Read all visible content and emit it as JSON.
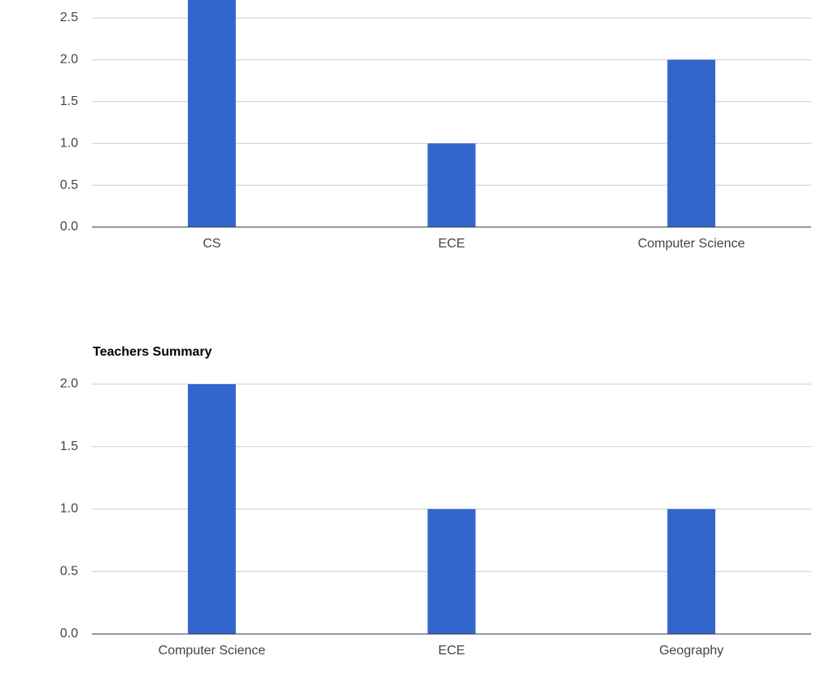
{
  "chart_data": [
    {
      "type": "bar",
      "categories": [
        "CS",
        "ECE",
        "Computer Science"
      ],
      "values": [
        3,
        1,
        2
      ],
      "color": "#3366cc",
      "ylim": [
        0,
        3
      ],
      "yticks": [
        {
          "value": 0,
          "label": "0.0"
        },
        0.5,
        {
          "value": 1,
          "label": "1.0"
        },
        1.5,
        {
          "value": 2,
          "label": "2.0"
        },
        2.5
      ],
      "grid": true
    },
    {
      "type": "bar",
      "title": "Teachers Summary",
      "categories": [
        "Computer Science",
        "ECE",
        "Geography"
      ],
      "values": [
        2,
        1,
        1
      ],
      "color": "#3366cc",
      "ylim": [
        0,
        2
      ],
      "yticks": [
        {
          "value": 0,
          "label": "0.0"
        },
        0.5,
        {
          "value": 1,
          "label": "1.0"
        },
        1.5,
        {
          "value": 2,
          "label": "2.0"
        }
      ],
      "grid": true
    }
  ]
}
